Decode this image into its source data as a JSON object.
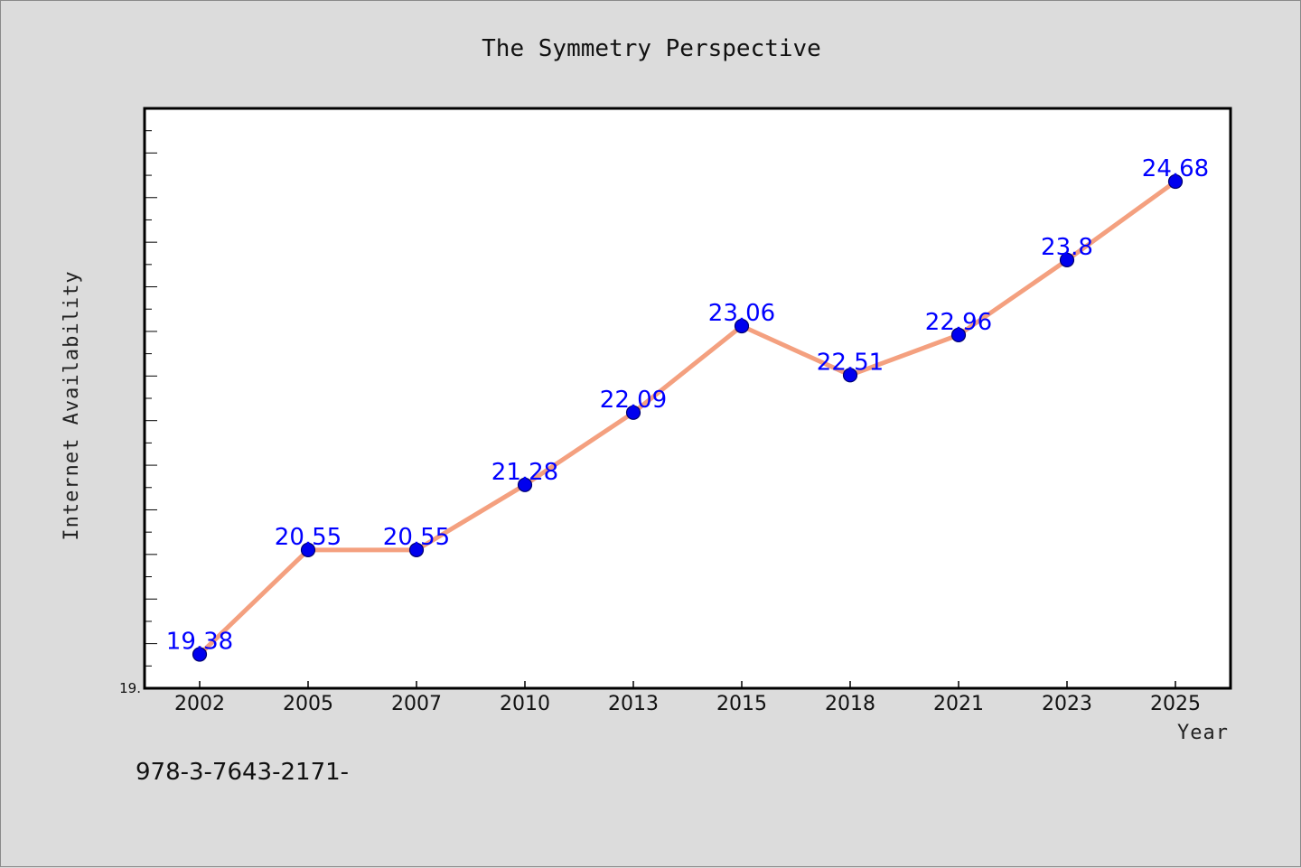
{
  "chart_data": {
    "type": "line",
    "title": "The Symmetry Perspective",
    "xlabel": "Year",
    "ylabel": "Internet Availability",
    "categories": [
      "2002",
      "2005",
      "2007",
      "2010",
      "2013",
      "2015",
      "2018",
      "2021",
      "2023",
      "2025"
    ],
    "values": [
      19.38,
      20.55,
      20.55,
      21.28,
      22.09,
      23.06,
      22.51,
      22.96,
      23.8,
      24.68
    ],
    "data_labels": [
      "19.38",
      "20.55",
      "20.55",
      "21.28",
      "22.09",
      "23.06",
      "22.51",
      "22.96",
      "23.8",
      "24.68"
    ],
    "ylim": [
      19.0,
      25.5
    ],
    "ytick_label": "19.",
    "grid": false,
    "line_color": "#f4a07f",
    "marker_color": "#0000ee",
    "label_color": "#0000ff"
  },
  "footer": {
    "text": "978-3-7643-2171-"
  }
}
